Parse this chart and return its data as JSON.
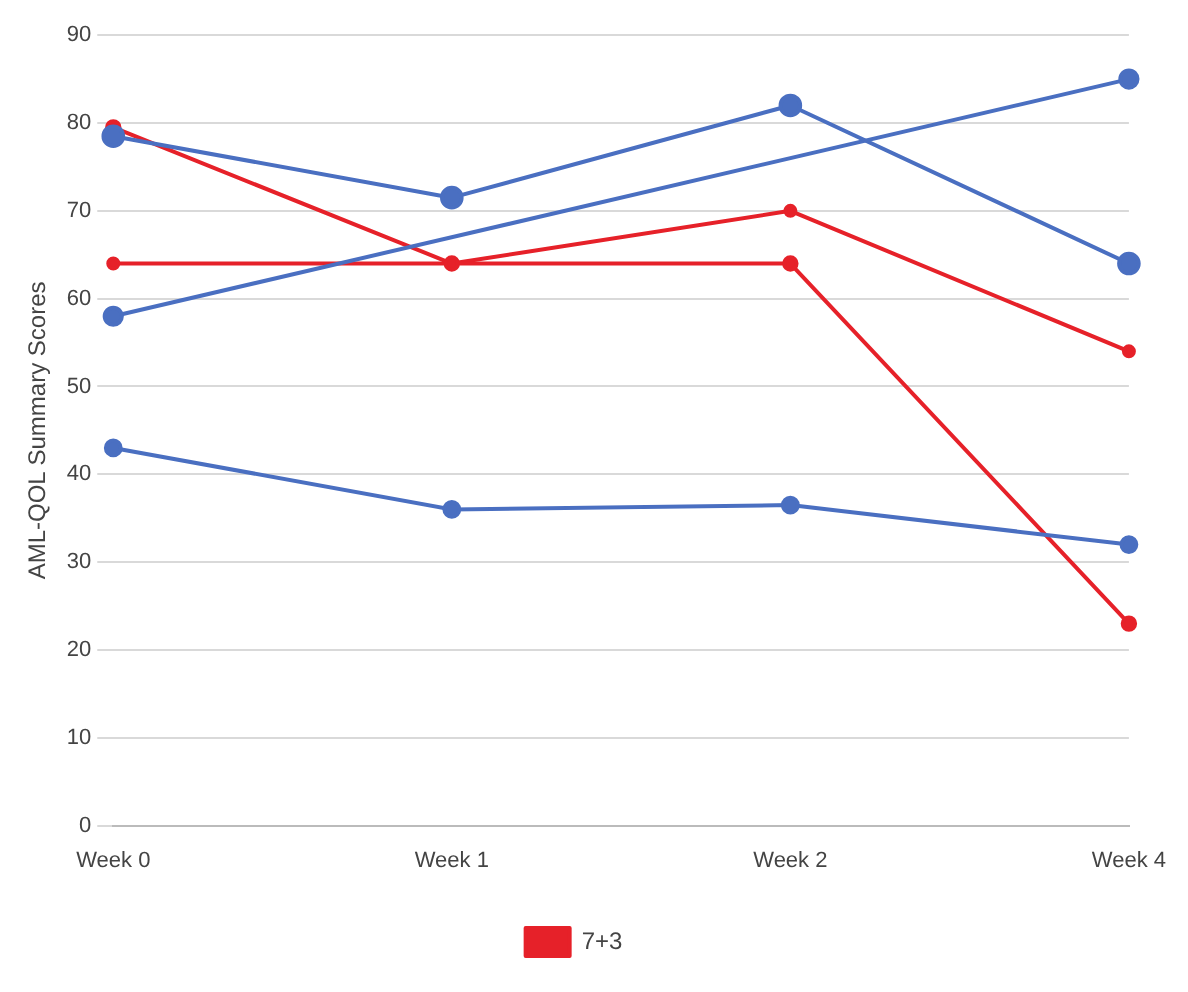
{
  "chart_data": {
    "type": "line",
    "ylabel": "AML-QOL Summary Scores",
    "categories": [
      "Week 0",
      "Week 1",
      "Week 2",
      "Week 4"
    ],
    "series": [
      {
        "color": "#4a6fc1",
        "values": [
          78.5,
          71.5,
          82,
          64
        ]
      },
      {
        "color": "#4a6fc1",
        "x": [
          "Week 0",
          "Week 4"
        ],
        "values": [
          58,
          85
        ]
      },
      {
        "color": "#4a6fc1",
        "values": [
          43,
          36,
          36.5,
          32
        ]
      },
      {
        "name": "7+3",
        "color": "#e62129",
        "values": [
          79.5,
          64,
          64,
          23
        ]
      },
      {
        "color": "#e62129",
        "values": [
          64,
          64,
          70,
          54
        ]
      }
    ],
    "ylim": [
      0,
      90
    ],
    "yticks": [
      0,
      10,
      20,
      30,
      40,
      50,
      60,
      70,
      80,
      90
    ],
    "grid": "y",
    "legend": "bottom",
    "marker": "circle",
    "line_style": "solid"
  }
}
